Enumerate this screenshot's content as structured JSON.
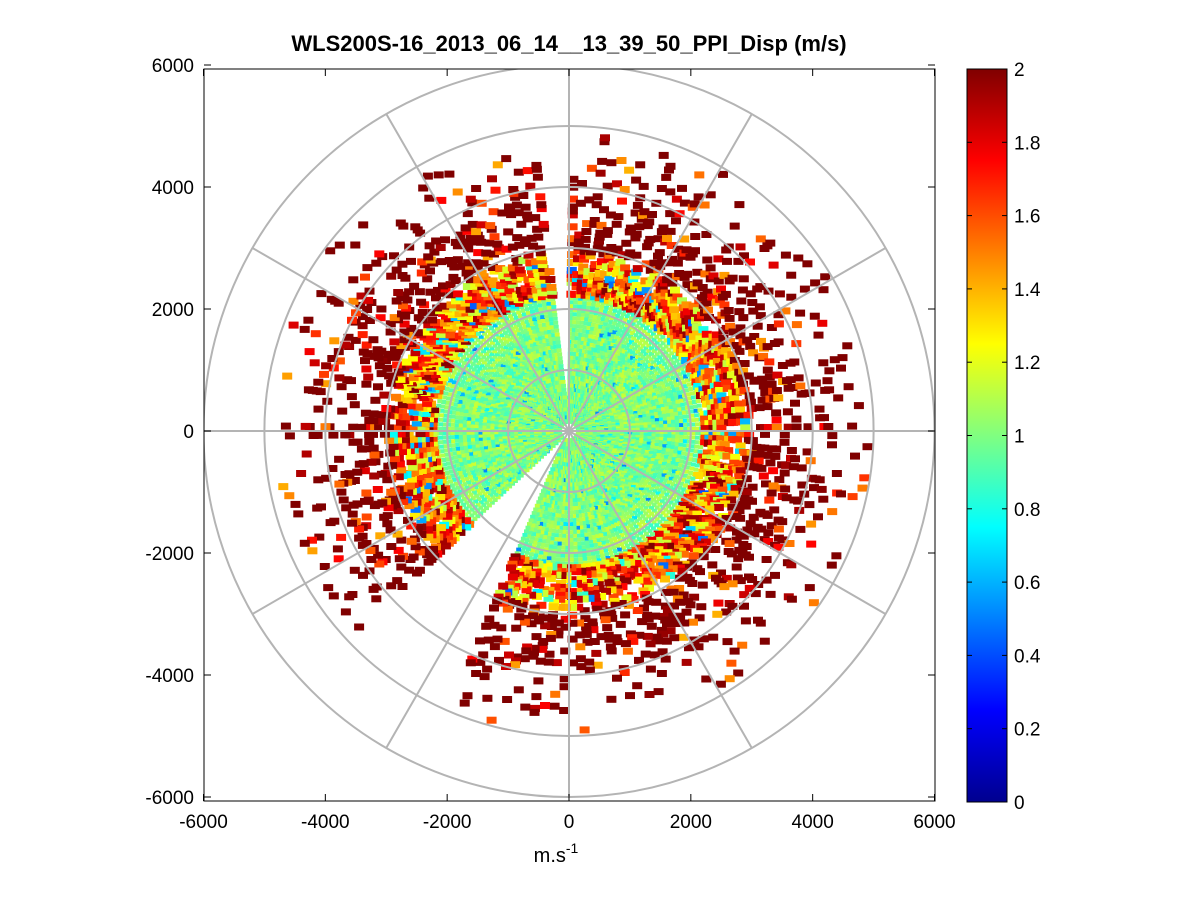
{
  "chart_data": {
    "type": "heatmap",
    "subtype": "polar-ppi",
    "title": "WLS200S-16_2013_06_14__13_39_50_PPI_Disp (m/s)",
    "xlabel": "m.s",
    "xlabel_sup": "-1",
    "ylabel": "",
    "xlim": [
      -6000,
      6000
    ],
    "ylim": [
      -6000,
      6000
    ],
    "x_ticks": [
      -6000,
      -4000,
      -2000,
      0,
      2000,
      4000,
      6000
    ],
    "y_ticks": [
      6000,
      4000,
      2000,
      0,
      -2000,
      -4000,
      -6000
    ],
    "x_tick_labels": [
      "-6000",
      "-4000",
      "-2000",
      "0",
      "2000",
      "4000",
      "6000"
    ],
    "y_tick_labels": [
      "6000",
      "4000",
      "2000",
      "0",
      "-2000",
      "-4000",
      "-6000"
    ],
    "polar_grid": {
      "radii": [
        1000,
        2000,
        3000,
        4000,
        5000,
        6000
      ],
      "spoke_step_deg": 30,
      "color": "#b4b4b4"
    },
    "colorbar": {
      "colormap": "jet",
      "min": 0,
      "max": 2,
      "ticks": [
        0,
        0.2,
        0.4,
        0.6,
        0.8,
        1,
        1.2,
        1.4,
        1.6,
        1.8,
        2
      ],
      "tick_labels": [
        "0",
        "0.2",
        "0.4",
        "0.6",
        "0.8",
        "1",
        "1.2",
        "1.4",
        "1.6",
        "1.8",
        "2"
      ]
    },
    "field_description": {
      "inner_core_radius_m": 2200,
      "inner_core_value_range": [
        0.85,
        1.15
      ],
      "transition_ring_m": [
        2200,
        2900
      ],
      "outer_value_typical": 2.0,
      "max_range_m": 5000,
      "missing_sectors_deg": [
        [
          -5,
          0
        ],
        [
          205,
          225
        ]
      ]
    }
  }
}
